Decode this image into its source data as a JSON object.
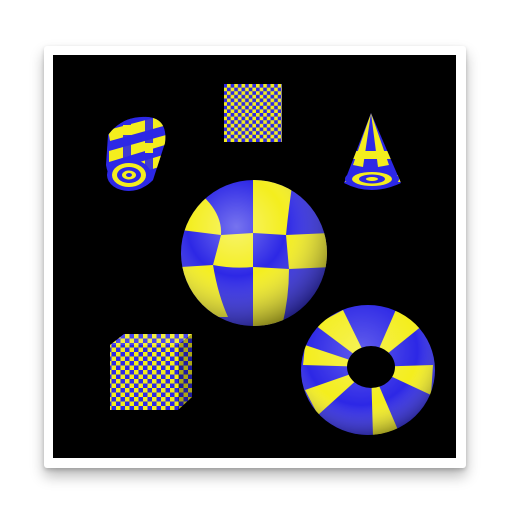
{
  "colors": {
    "background": "#000000",
    "check_a": "#2d28e6",
    "check_b": "#f4ee1e",
    "frame": "#ffffff"
  },
  "objects": [
    {
      "shape": "flat-checkerboard-square",
      "pattern": "checkerboard"
    },
    {
      "shape": "cylinder",
      "pattern": "checkerboard"
    },
    {
      "shape": "cone",
      "pattern": "checkerboard"
    },
    {
      "shape": "sphere",
      "pattern": "checkerboard"
    },
    {
      "shape": "cube",
      "pattern": "checkerboard"
    },
    {
      "shape": "torus",
      "pattern": "checkerboard"
    }
  ]
}
